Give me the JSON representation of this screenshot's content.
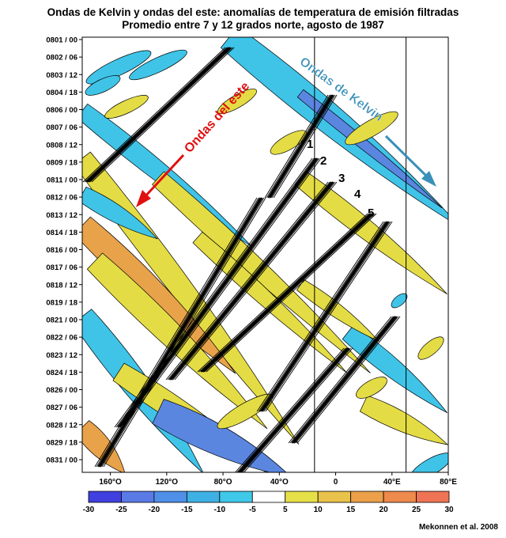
{
  "title_line1": "Ondas de Kelvin y ondas del este: anomalías de temperatura de emisión filtradas",
  "title_line2": "Promedio entre 7 y 12 grados norte, agosto de 1987",
  "credit": "Mekonnen et al. 2008",
  "chart_data": {
    "type": "heatmap",
    "title": "Ondas de Kelvin y ondas del este: anomalías de temperatura de emisión filtradas",
    "subtitle": "Promedio entre 7 y 12 grados norte, agosto de 1987",
    "x_axis": {
      "ticks": [
        "160°O",
        "120°O",
        "80°O",
        "40°O",
        "0",
        "40°E",
        "80°E"
      ],
      "tick_values": [
        -160,
        -120,
        -80,
        -40,
        0,
        40,
        80
      ],
      "range": [
        -180,
        80
      ]
    },
    "y_axis": {
      "ticks": [
        "0801 / 00",
        "0802 / 06",
        "0803 / 12",
        "0804 / 18",
        "0806 / 00",
        "0807 / 06",
        "0808 / 12",
        "0809 / 18",
        "0811 / 00",
        "0812 / 06",
        "0813 / 12",
        "0814 / 18",
        "0816 / 00",
        "0817 / 06",
        "0818 / 12",
        "0819 / 18",
        "0821 / 00",
        "0822 / 06",
        "0823 / 12",
        "0824 / 18",
        "0826 / 00",
        "0827 / 06",
        "0828 / 12",
        "0829 / 18",
        "0831 / 00"
      ],
      "reversed": true
    },
    "vertical_lines_lon": [
      -15,
      50
    ],
    "colorbar": {
      "ticks": [
        -30,
        -25,
        -20,
        -15,
        -10,
        -5,
        5,
        10,
        15,
        20,
        25,
        30
      ],
      "colors": [
        "#4040e0",
        "#5a7ae6",
        "#4f8fe8",
        "#3fb0e4",
        "#40c8e8",
        "#ffffff",
        "#e6e048",
        "#e8c24a",
        "#eca04a",
        "#ee8a4c",
        "#ef7455"
      ]
    },
    "annotations": [
      {
        "label": "Ondas de Kelvin",
        "color": "#3a90b8"
      },
      {
        "label": "Ondas del este",
        "color": "#e01010"
      },
      {
        "label": "1"
      },
      {
        "label": "2"
      },
      {
        "label": "3"
      },
      {
        "label": "4"
      },
      {
        "label": "5"
      }
    ]
  }
}
